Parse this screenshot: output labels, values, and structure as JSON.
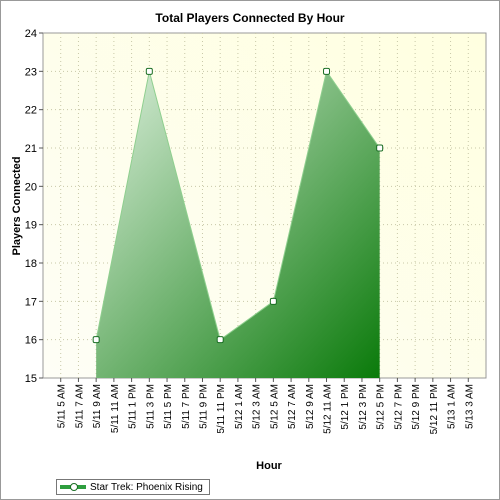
{
  "chart_data": {
    "type": "area",
    "title": "Total Players Connected By Hour",
    "xlabel": "Hour",
    "ylabel": "Players Connected",
    "ylim": [
      15,
      24
    ],
    "yticks": [
      15,
      16,
      17,
      18,
      19,
      20,
      21,
      22,
      23,
      24
    ],
    "categories": [
      "5/11 5 AM",
      "5/11 7 AM",
      "5/11 9 AM",
      "5/11 11 AM",
      "5/11 1 PM",
      "5/11 3 PM",
      "5/11 5 PM",
      "5/11 7 PM",
      "5/11 9 PM",
      "5/11 11 PM",
      "5/12 1 AM",
      "5/12 3 AM",
      "5/12 5 AM",
      "5/12 7 AM",
      "5/12 9 AM",
      "5/12 11 AM",
      "5/12 1 PM",
      "5/12 3 PM",
      "5/12 5 PM",
      "5/12 7 PM",
      "5/12 9 PM",
      "5/12 11 PM",
      "5/13 1 AM",
      "5/13 3 AM"
    ],
    "series": [
      {
        "name": "Star Trek: Phoenix Rising",
        "points": [
          {
            "x": "5/11 9 AM",
            "y": 16
          },
          {
            "x": "5/11 3 PM",
            "y": 23
          },
          {
            "x": "5/11 11 PM",
            "y": 16
          },
          {
            "x": "5/12 5 AM",
            "y": 17
          },
          {
            "x": "5/12 11 AM",
            "y": 23
          },
          {
            "x": "5/12 5 PM",
            "y": 21
          }
        ]
      }
    ],
    "grid": true,
    "legend_position": "bottom-left",
    "colors": {
      "series_dark": "#0a7a0a",
      "series_light": "#dcefdc",
      "plot_bg_light": "#ffffe0",
      "plot_bg_dark": "#fefef6",
      "grid": "#c8c8a8"
    }
  }
}
